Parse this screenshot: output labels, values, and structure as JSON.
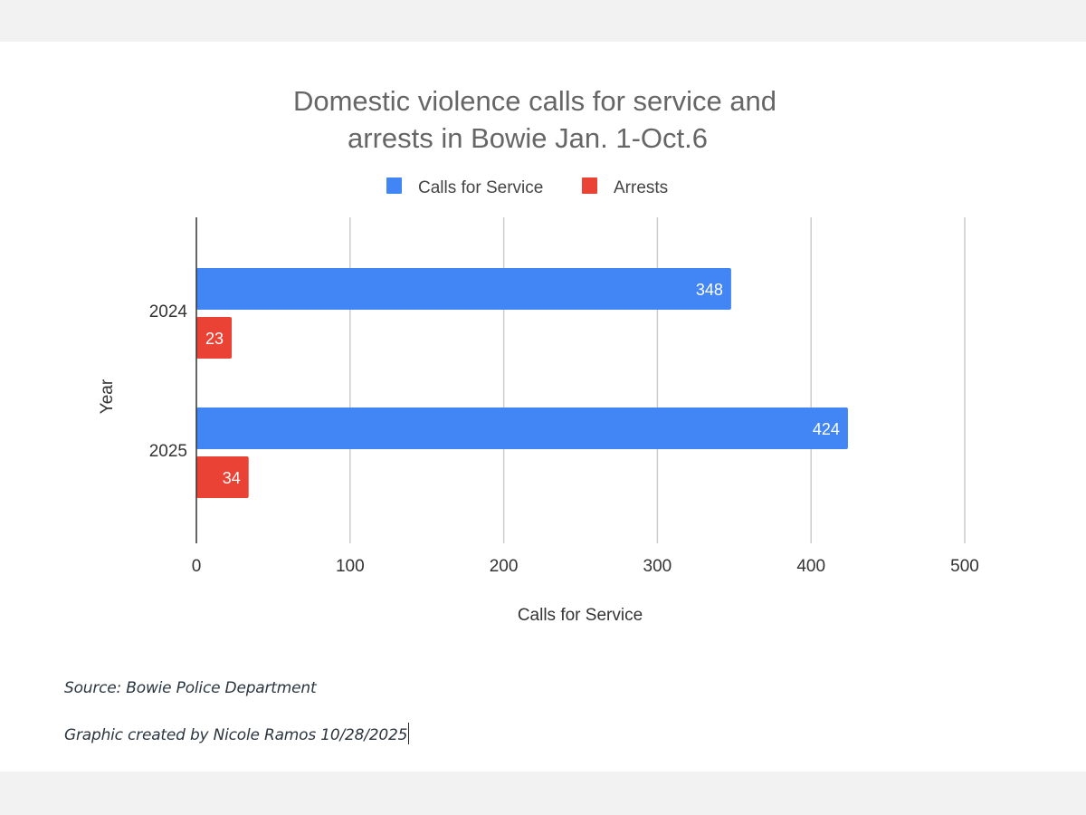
{
  "chart_data": {
    "type": "bar",
    "orientation": "horizontal",
    "title": "Domestic violence calls for service and arrests in Bowie Jan. 1-Oct.6",
    "title_lines": [
      "Domestic violence calls for service and",
      "arrests in Bowie Jan. 1-Oct.6"
    ],
    "categories": [
      "2024",
      "2025"
    ],
    "series": [
      {
        "name": "Calls for Service",
        "color": "#4285f4",
        "values": [
          348,
          424
        ]
      },
      {
        "name": "Arrests",
        "color": "#ea4335",
        "values": [
          23,
          34
        ]
      }
    ],
    "xlabel": "Calls for Service",
    "ylabel": "Year",
    "xlim": [
      0,
      500
    ],
    "xticks": [
      "0",
      "100",
      "200",
      "300",
      "400",
      "500"
    ],
    "grid": true,
    "legend_position": "top-center",
    "data_labels": true
  },
  "footer": {
    "source": "Source: Bowie Police Department",
    "credit": "Graphic created by Nicole Ramos 10/28/2025"
  }
}
